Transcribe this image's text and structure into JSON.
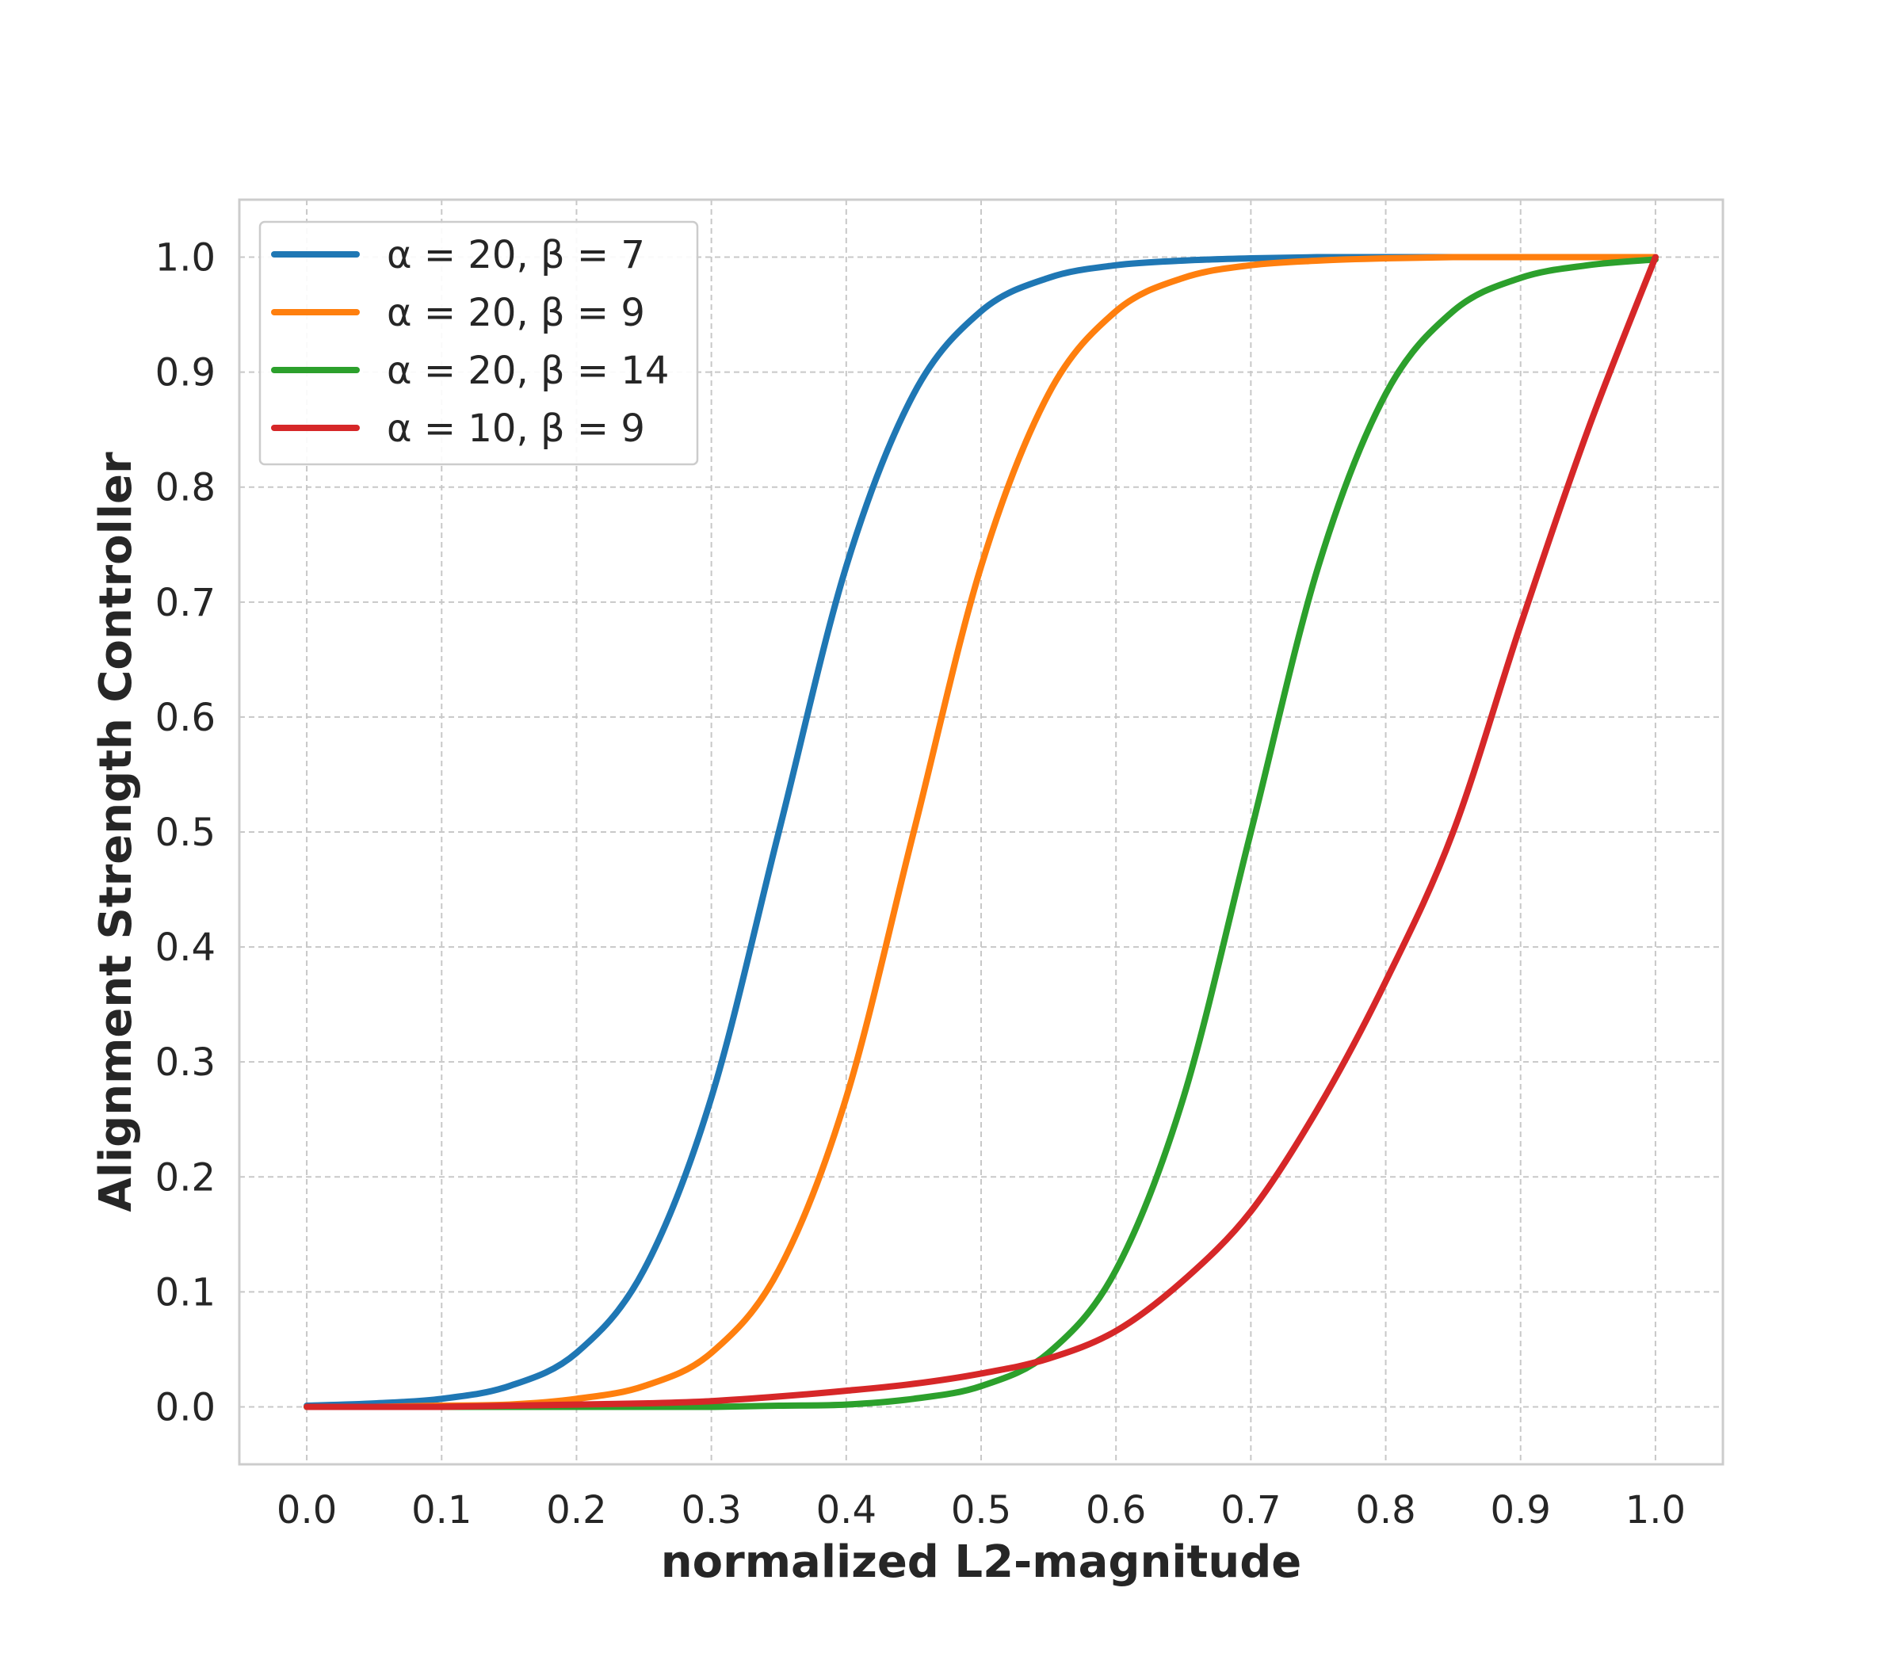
{
  "chart_data": {
    "type": "line",
    "xlabel": "normalized L2-magnitude",
    "ylabel": "Alignment Strength Controller",
    "xlim": [
      -0.05,
      1.05
    ],
    "ylim": [
      -0.05,
      1.05
    ],
    "x_ticks": [
      "0.0",
      "0.1",
      "0.2",
      "0.3",
      "0.4",
      "0.5",
      "0.6",
      "0.7",
      "0.8",
      "0.9",
      "1.0"
    ],
    "y_ticks": [
      "0.0",
      "0.1",
      "0.2",
      "0.3",
      "0.4",
      "0.5",
      "0.6",
      "0.7",
      "0.8",
      "0.9",
      "1.0"
    ],
    "grid": true,
    "legend_position": "top-left",
    "x": [
      0.0,
      0.05,
      0.1,
      0.15,
      0.2,
      0.25,
      0.3,
      0.35,
      0.4,
      0.45,
      0.5,
      0.55,
      0.6,
      0.65,
      0.7,
      0.75,
      0.8,
      0.85,
      0.9,
      0.95,
      1.0
    ],
    "series": [
      {
        "name": "α = 20, β = 7",
        "color": "#1f77b4",
        "values": [
          0.001,
          0.003,
          0.007,
          0.018,
          0.047,
          0.119,
          0.269,
          0.5,
          0.731,
          0.881,
          0.953,
          0.982,
          0.993,
          0.997,
          0.999,
          1.0,
          1.0,
          1.0,
          1.0,
          1.0,
          1.0
        ]
      },
      {
        "name": "α = 20, β = 9",
        "color": "#ff7f0e",
        "values": [
          0.0,
          0.0,
          0.001,
          0.002,
          0.007,
          0.018,
          0.047,
          0.119,
          0.269,
          0.5,
          0.731,
          0.881,
          0.953,
          0.982,
          0.993,
          0.997,
          0.999,
          1.0,
          1.0,
          1.0,
          1.0
        ]
      },
      {
        "name": "α = 20, β = 14",
        "color": "#2ca02c",
        "values": [
          0.0,
          0.0,
          0.0,
          0.0,
          0.0,
          0.0,
          0.0,
          0.001,
          0.002,
          0.007,
          0.018,
          0.047,
          0.119,
          0.269,
          0.5,
          0.731,
          0.881,
          0.953,
          0.982,
          0.993,
          0.998
        ]
      },
      {
        "name": "α = 10, β = 9",
        "color": "#d62728",
        "values": [
          0.0,
          0.0,
          0.0,
          0.001,
          0.002,
          0.003,
          0.005,
          0.009,
          0.014,
          0.02,
          0.029,
          0.042,
          0.066,
          0.11,
          0.17,
          0.26,
          0.37,
          0.5,
          0.68,
          0.85,
          1.0
        ]
      }
    ]
  }
}
